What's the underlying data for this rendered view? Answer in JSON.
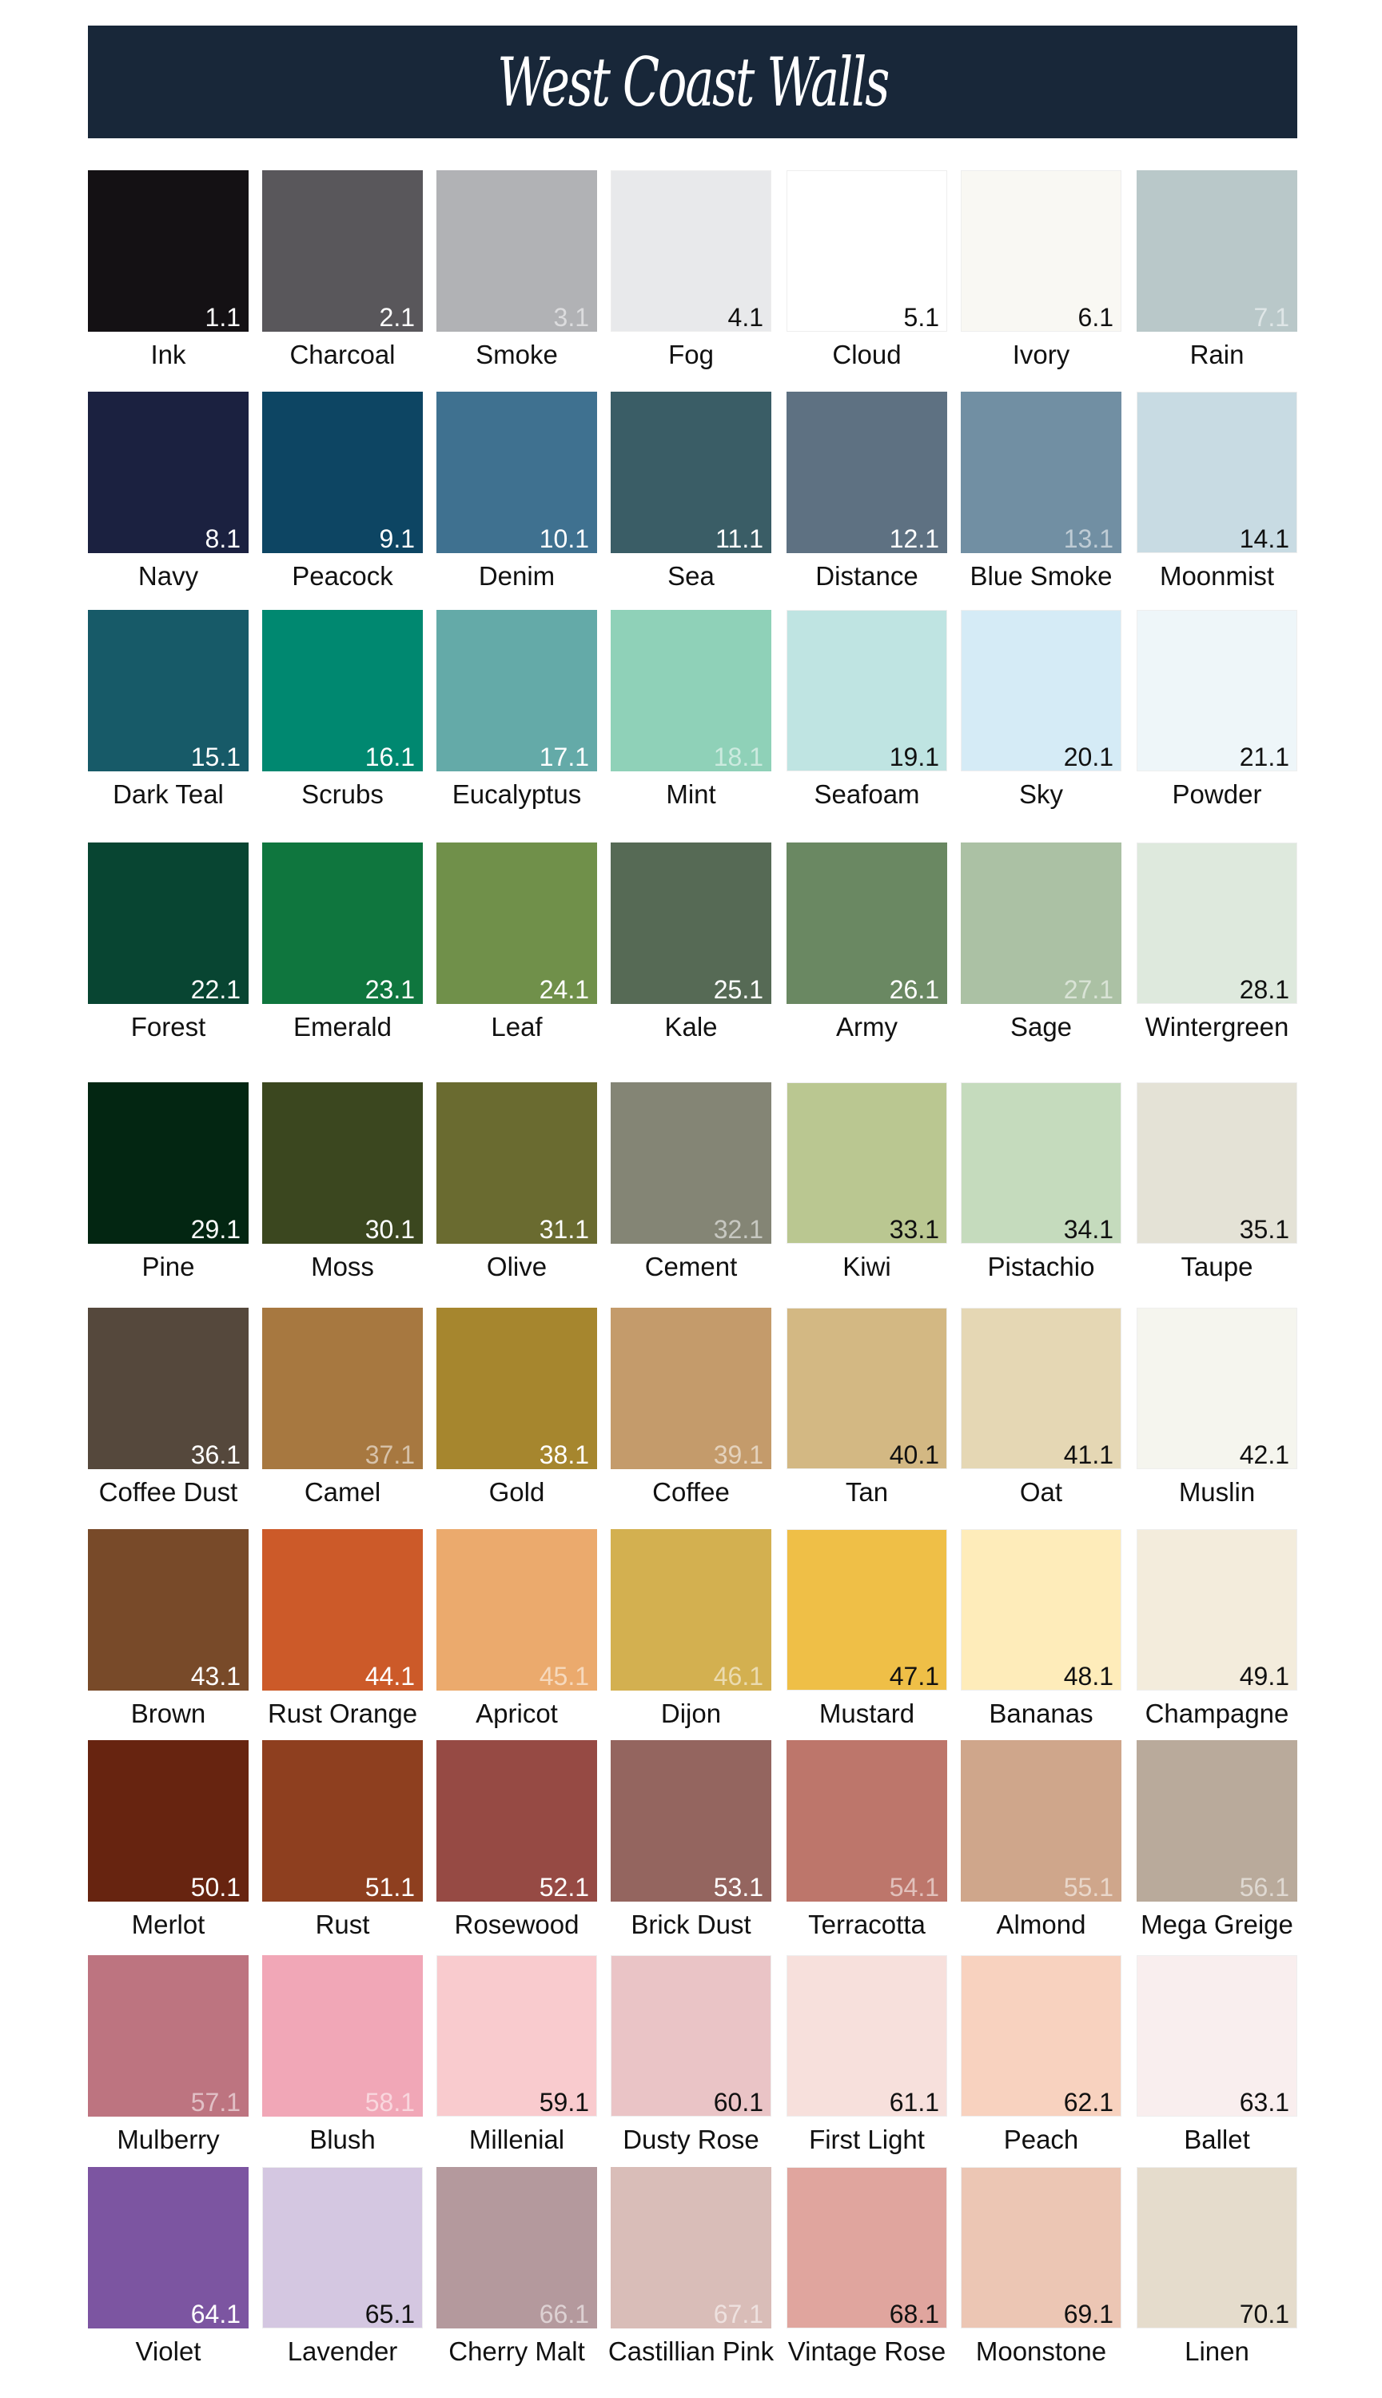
{
  "header": {
    "title": "West Coast Walls",
    "background": "#182739"
  },
  "rows": [
    [
      {
        "name": "Ink",
        "code": "1.1",
        "color": "#141114",
        "text": "white"
      },
      {
        "name": "Charcoal",
        "code": "2.1",
        "color": "#59575b",
        "text": "white"
      },
      {
        "name": "Smoke",
        "code": "3.1",
        "color": "#b1b2b5",
        "text": "light"
      },
      {
        "name": "Fog",
        "code": "4.1",
        "color": "#e8e9eb",
        "text": "dark"
      },
      {
        "name": "Cloud",
        "code": "5.1",
        "color": "#ffffff",
        "text": "dark"
      },
      {
        "name": "Ivory",
        "code": "6.1",
        "color": "#f9f8f3",
        "text": "dark"
      },
      {
        "name": "Rain",
        "code": "7.1",
        "color": "#b9c8c9",
        "text": "light"
      }
    ],
    [
      {
        "name": "Navy",
        "code": "8.1",
        "color": "#1b2140",
        "text": "white"
      },
      {
        "name": "Peacock",
        "code": "9.1",
        "color": "#0d4563",
        "text": "white"
      },
      {
        "name": "Denim",
        "code": "10.1",
        "color": "#3f7190",
        "text": "white"
      },
      {
        "name": "Sea",
        "code": "11.1",
        "color": "#3a5d66",
        "text": "white"
      },
      {
        "name": "Distance",
        "code": "12.1",
        "color": "#5e7182",
        "text": "white"
      },
      {
        "name": "Blue Smoke",
        "code": "13.1",
        "color": "#718fa3",
        "text": "light"
      },
      {
        "name": "Moonmist",
        "code": "14.1",
        "color": "#c8dbe3",
        "text": "dark"
      }
    ],
    [
      {
        "name": "Dark Teal",
        "code": "15.1",
        "color": "#175a68",
        "text": "white"
      },
      {
        "name": "Scrubs",
        "code": "16.1",
        "color": "#008870",
        "text": "white"
      },
      {
        "name": "Eucalyptus",
        "code": "17.1",
        "color": "#64aaa8",
        "text": "white"
      },
      {
        "name": "Mint",
        "code": "18.1",
        "color": "#8fd1b8",
        "text": "light"
      },
      {
        "name": "Seafoam",
        "code": "19.1",
        "color": "#bfe4e2",
        "text": "dark"
      },
      {
        "name": "Sky",
        "code": "20.1",
        "color": "#d5ebf6",
        "text": "dark"
      },
      {
        "name": "Powder",
        "code": "21.1",
        "color": "#eef6f9",
        "text": "dark"
      }
    ],
    [
      {
        "name": "Forest",
        "code": "22.1",
        "color": "#084532",
        "text": "white"
      },
      {
        "name": "Emerald",
        "code": "23.1",
        "color": "#0f763e",
        "text": "white"
      },
      {
        "name": "Leaf",
        "code": "24.1",
        "color": "#70904a",
        "text": "white"
      },
      {
        "name": "Kale",
        "code": "25.1",
        "color": "#566a55",
        "text": "white"
      },
      {
        "name": "Army",
        "code": "26.1",
        "color": "#6a8862",
        "text": "white"
      },
      {
        "name": "Sage",
        "code": "27.1",
        "color": "#abc1a4",
        "text": "light"
      },
      {
        "name": "Wintergreen",
        "code": "28.1",
        "color": "#dee9dd",
        "text": "dark"
      }
    ],
    [
      {
        "name": "Pine",
        "code": "29.1",
        "color": "#032612",
        "text": "white"
      },
      {
        "name": "Moss",
        "code": "30.1",
        "color": "#3b471f",
        "text": "white"
      },
      {
        "name": "Olive",
        "code": "31.1",
        "color": "#6a6b30",
        "text": "white"
      },
      {
        "name": "Cement",
        "code": "32.1",
        "color": "#848575",
        "text": "light"
      },
      {
        "name": "Kiwi",
        "code": "33.1",
        "color": "#bac791",
        "text": "dark"
      },
      {
        "name": "Pistachio",
        "code": "34.1",
        "color": "#c5dbbd",
        "text": "dark"
      },
      {
        "name": "Taupe",
        "code": "35.1",
        "color": "#e4e2d6",
        "text": "dark"
      }
    ],
    [
      {
        "name": "Coffee Dust",
        "code": "36.1",
        "color": "#55483c",
        "text": "white"
      },
      {
        "name": "Camel",
        "code": "37.1",
        "color": "#a77840",
        "text": "light"
      },
      {
        "name": "Gold",
        "code": "38.1",
        "color": "#a6862e",
        "text": "white"
      },
      {
        "name": "Coffee",
        "code": "39.1",
        "color": "#c49b6b",
        "text": "light"
      },
      {
        "name": "Tan",
        "code": "40.1",
        "color": "#d3b883",
        "text": "dark"
      },
      {
        "name": "Oat",
        "code": "41.1",
        "color": "#e5d7b4",
        "text": "dark"
      },
      {
        "name": "Muslin",
        "code": "42.1",
        "color": "#f5f5ee",
        "text": "dark"
      }
    ],
    [
      {
        "name": "Brown",
        "code": "43.1",
        "color": "#784a29",
        "text": "white"
      },
      {
        "name": "Rust Orange",
        "code": "44.1",
        "color": "#cc5a29",
        "text": "white"
      },
      {
        "name": "Apricot",
        "code": "45.1",
        "color": "#ebaa6d",
        "text": "light"
      },
      {
        "name": "Dijon",
        "code": "46.1",
        "color": "#d3b050",
        "text": "light"
      },
      {
        "name": "Mustard",
        "code": "47.1",
        "color": "#efbf47",
        "text": "dark"
      },
      {
        "name": "Bananas",
        "code": "48.1",
        "color": "#feecba",
        "text": "dark"
      },
      {
        "name": "Champagne",
        "code": "49.1",
        "color": "#f3ecdc",
        "text": "dark"
      }
    ],
    [
      {
        "name": "Merlot",
        "code": "50.1",
        "color": "#672410",
        "text": "white"
      },
      {
        "name": "Rust",
        "code": "51.1",
        "color": "#8e3f1f",
        "text": "white"
      },
      {
        "name": "Rosewood",
        "code": "52.1",
        "color": "#964a44",
        "text": "white"
      },
      {
        "name": "Brick Dust",
        "code": "53.1",
        "color": "#94655f",
        "text": "white"
      },
      {
        "name": "Terracotta",
        "code": "54.1",
        "color": "#bd766b",
        "text": "light"
      },
      {
        "name": "Almond",
        "code": "55.1",
        "color": "#cfa68b",
        "text": "light"
      },
      {
        "name": "Mega Greige",
        "code": "56.1",
        "color": "#b9aa9b",
        "text": "light"
      }
    ],
    [
      {
        "name": "Mulberry",
        "code": "57.1",
        "color": "#bd7480",
        "text": "light"
      },
      {
        "name": "Blush",
        "code": "58.1",
        "color": "#f1a7b7",
        "text": "light"
      },
      {
        "name": "Millenial",
        "code": "59.1",
        "color": "#f9cbce",
        "text": "dark"
      },
      {
        "name": "Dusty Rose",
        "code": "60.1",
        "color": "#eac4c6",
        "text": "dark"
      },
      {
        "name": "First Light",
        "code": "61.1",
        "color": "#f7e0dc",
        "text": "dark"
      },
      {
        "name": "Peach",
        "code": "62.1",
        "color": "#f8d2bf",
        "text": "dark"
      },
      {
        "name": "Ballet",
        "code": "63.1",
        "color": "#f9eeee",
        "text": "dark"
      }
    ],
    [
      {
        "name": "Violet",
        "code": "64.1",
        "color": "#7c55a1",
        "text": "white"
      },
      {
        "name": "Lavender",
        "code": "65.1",
        "color": "#d4c7e1",
        "text": "dark"
      },
      {
        "name": "Cherry Malt",
        "code": "66.1",
        "color": "#b4999d",
        "text": "light"
      },
      {
        "name": "Castillian Pink",
        "code": "67.1",
        "color": "#d9bdb8",
        "text": "light"
      },
      {
        "name": "Vintage Rose",
        "code": "68.1",
        "color": "#e0a59e",
        "text": "dark"
      },
      {
        "name": "Moonstone",
        "code": "69.1",
        "color": "#ecc6b4",
        "text": "dark"
      },
      {
        "name": "Linen",
        "code": "70.1",
        "color": "#e5dccc",
        "text": "dark"
      }
    ]
  ]
}
